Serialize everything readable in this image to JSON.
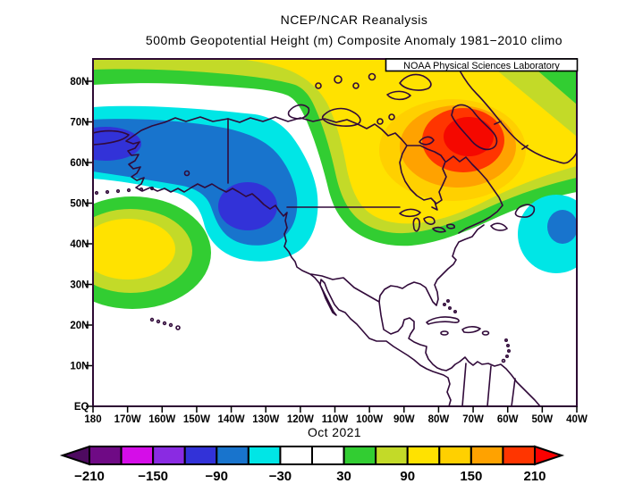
{
  "title": {
    "line1": "NCEP/NCAR Reanalysis",
    "line2": "500mb Geopotential Height (m) Composite Anomaly 1981−2010 climo"
  },
  "branding": "NOAA Physical Sciences Laboratory",
  "caption": "Oct 2021",
  "axes": {
    "lat_labels": [
      "80N",
      "70N",
      "60N",
      "50N",
      "40N",
      "30N",
      "20N",
      "10N",
      "EQ"
    ],
    "lon_labels": [
      "180",
      "170W",
      "160W",
      "150W",
      "140W",
      "130W",
      "120W",
      "110W",
      "100W",
      "90W",
      "80W",
      "70W",
      "60W",
      "50W",
      "40W"
    ]
  },
  "colorbar": {
    "labels": [
      "−210",
      "−150",
      "−90",
      "−30",
      "30",
      "90",
      "150",
      "210"
    ],
    "cell_colors": [
      "#6f0a85",
      "#d50de8",
      "#8a2be2",
      "#3232d8",
      "#1874cd",
      "#00e6e6",
      "#ffffff",
      "#ffffff",
      "#32cd32",
      "#c3da28",
      "#ffe200",
      "#ffd000",
      "#ffa200",
      "#ff3500"
    ],
    "arrow_left_color": "#4e0a60",
    "arrow_right_color": "#fb0000"
  },
  "palette": {
    "white": "#ffffff",
    "coastline": "#310a3a",
    "frame": "#2d0a33",
    "indigo": "#3232d8",
    "blue": "#1874cd",
    "cyan": "#00e6e6",
    "green": "#32cd32",
    "yellow_green": "#c3da28",
    "yellow": "#ffe200",
    "amber": "#ffd000",
    "orange": "#ffa200",
    "red_orange": "#ff3500",
    "red": "#f50800"
  },
  "chart_data": {
    "type": "filled-contour-map",
    "dataset": "NCEP/NCAR Reanalysis",
    "variable": "500mb Geopotential Height Composite Anomaly",
    "unit": "m",
    "climatology": "1981−2010 climo",
    "period": "Oct 2021",
    "source_label": "NOAA Physical Sciences Laboratory",
    "lat_range": [
      "EQ",
      "85N"
    ],
    "lon_range": [
      "180",
      "40W"
    ],
    "lat_ticks": [
      "EQ",
      "10N",
      "20N",
      "30N",
      "40N",
      "50N",
      "60N",
      "70N",
      "80N"
    ],
    "lon_ticks": [
      "180",
      "170W",
      "160W",
      "150W",
      "140W",
      "130W",
      "120W",
      "110W",
      "100W",
      "90W",
      "80W",
      "70W",
      "60W",
      "50W",
      "40W"
    ],
    "contour_interval": 30,
    "colorbar_values": [
      -210,
      -150,
      -90,
      -30,
      30,
      90,
      150,
      210
    ],
    "colorbar_range": [
      -240,
      240
    ],
    "anomaly_centers": [
      {
        "region": "Bering Sea / western Alaska",
        "sign": "negative",
        "band_m": "-120 to -90",
        "approx_location": "62N 175W"
      },
      {
        "region": "Gulf of Alaska / British Columbia coast",
        "sign": "negative",
        "band_m": "-120 to -90",
        "approx_location": "50N 138W"
      },
      {
        "region": "Hudson Bay / northeastern Canada",
        "sign": "positive",
        "band_m": "> +210",
        "approx_location": "62N 72W"
      },
      {
        "region": "central North Pacific",
        "sign": "positive",
        "band_m": "+90 to +120",
        "approx_location": "38N 168W"
      },
      {
        "region": "western North Atlantic",
        "sign": "negative",
        "band_m": "-90 to -60",
        "approx_location": "45N 45W"
      }
    ],
    "legend_position": "bottom",
    "grid": false
  }
}
